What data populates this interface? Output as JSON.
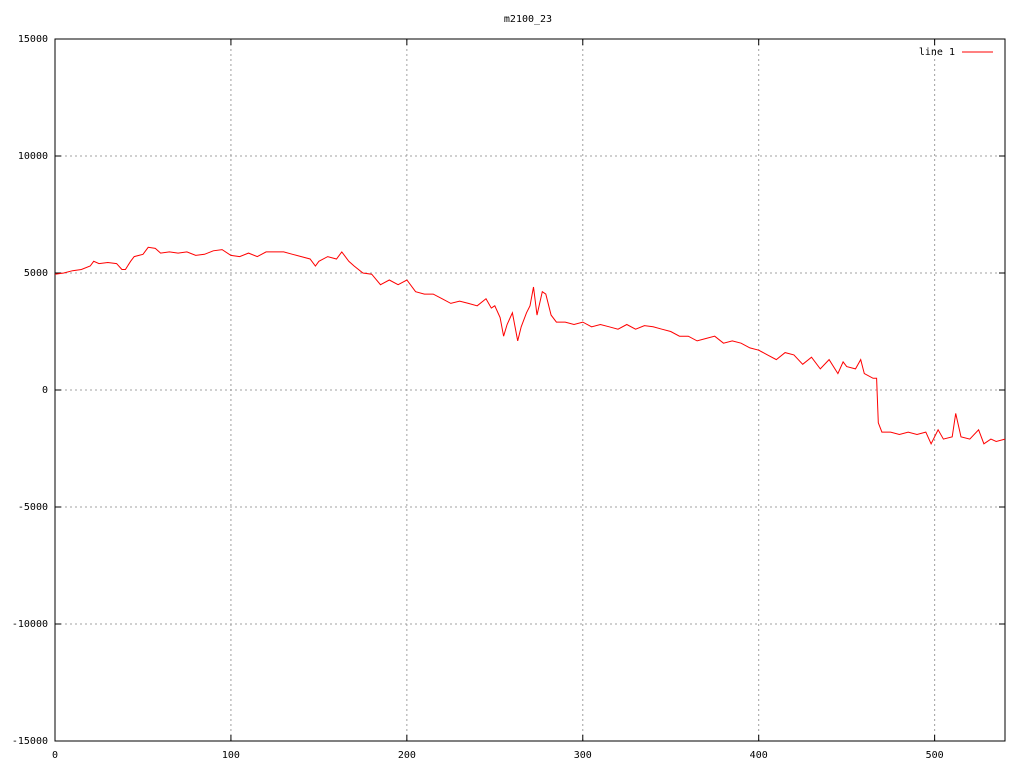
{
  "chart_data": {
    "type": "line",
    "title": "m2100_23",
    "x": [
      0,
      5,
      10,
      15,
      20,
      22,
      25,
      30,
      35,
      38,
      40,
      43,
      45,
      50,
      53,
      57,
      60,
      65,
      70,
      75,
      80,
      85,
      90,
      95,
      100,
      105,
      110,
      115,
      120,
      125,
      130,
      135,
      140,
      145,
      148,
      150,
      155,
      160,
      163,
      167,
      170,
      175,
      180,
      185,
      190,
      195,
      200,
      205,
      210,
      215,
      220,
      225,
      230,
      235,
      240,
      245,
      248,
      250,
      253,
      255,
      257,
      260,
      263,
      265,
      268,
      270,
      272,
      274,
      277,
      279,
      282,
      285,
      290,
      295,
      300,
      305,
      310,
      315,
      320,
      325,
      330,
      335,
      340,
      345,
      350,
      355,
      360,
      365,
      370,
      375,
      380,
      385,
      390,
      395,
      400,
      405,
      410,
      415,
      420,
      425,
      430,
      435,
      440,
      445,
      448,
      450,
      455,
      458,
      460,
      465,
      467,
      468,
      470,
      475,
      480,
      485,
      490,
      495,
      498,
      502,
      505,
      510,
      512,
      515,
      520,
      525,
      528,
      532,
      535,
      540
    ],
    "series": [
      {
        "name": "line 1",
        "color": "#ff0000",
        "values": [
          4950,
          5000,
          5100,
          5150,
          5300,
          5500,
          5400,
          5450,
          5400,
          5150,
          5150,
          5500,
          5700,
          5800,
          6100,
          6050,
          5850,
          5900,
          5850,
          5900,
          5750,
          5800,
          5950,
          6000,
          5750,
          5700,
          5850,
          5700,
          5900,
          5900,
          5900,
          5800,
          5700,
          5600,
          5300,
          5500,
          5700,
          5600,
          5900,
          5500,
          5300,
          5000,
          4950,
          4500,
          4700,
          4500,
          4700,
          4200,
          4100,
          4100,
          3900,
          3700,
          3800,
          3700,
          3600,
          3900,
          3500,
          3600,
          3100,
          2300,
          2800,
          3300,
          2100,
          2700,
          3300,
          3600,
          4400,
          3200,
          4200,
          4100,
          3200,
          2900,
          2900,
          2800,
          2900,
          2700,
          2800,
          2700,
          2600,
          2800,
          2600,
          2750,
          2700,
          2600,
          2500,
          2300,
          2300,
          2100,
          2200,
          2300,
          2000,
          2100,
          2000,
          1800,
          1700,
          1500,
          1300,
          1600,
          1500,
          1100,
          1400,
          900,
          1300,
          700,
          1200,
          1000,
          900,
          1300,
          700,
          500,
          500,
          -1400,
          -1800,
          -1800,
          -1900,
          -1800,
          -1900,
          -1800,
          -2300,
          -1700,
          -2100,
          -2000,
          -1000,
          -2000,
          -2100,
          -1700,
          -2300,
          -2100,
          -2200,
          -2100
        ]
      }
    ],
    "xlim": [
      0,
      540
    ],
    "ylim": [
      -15000,
      15000
    ],
    "xticks": [
      0,
      100,
      200,
      300,
      400,
      500
    ],
    "yticks": [
      -15000,
      -10000,
      -5000,
      0,
      5000,
      10000,
      15000
    ],
    "grid": true,
    "legend": "top-right"
  }
}
